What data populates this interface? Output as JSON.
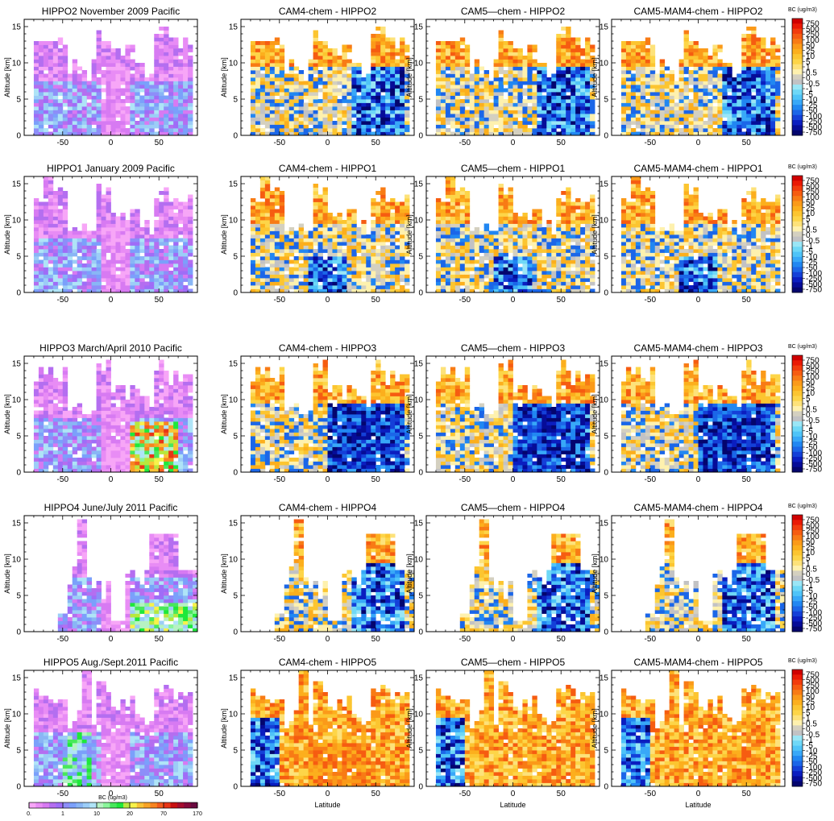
{
  "chart_data": {
    "type": "heatmap",
    "x_label": "Latitude",
    "y_label": "Altitude [km]",
    "xlim": [
      -90,
      90
    ],
    "ylim": [
      0,
      16
    ],
    "x_ticks": [
      -50,
      0,
      50
    ],
    "y_ticks": [
      0,
      5,
      10,
      15
    ],
    "rows": [
      {
        "titles": [
          "HIPPO2 November 2009 Pacific",
          "CAM4-chem - HIPPO2",
          "CAM5—chem - HIPPO2",
          "CAM5-MAM4-chem - HIPPO2"
        ]
      },
      {
        "titles": [
          "HIPPO1 January 2009 Pacific",
          "CAM4-chem - HIPPO1",
          "CAM5—chem - HIPPO1",
          "CAM5-MAM4-chem - HIPPO1"
        ]
      },
      {
        "titles": [
          "HIPPO3 March/April 2010 Pacific",
          "CAM4-chem - HIPPO3",
          "CAM5—chem - HIPPO3",
          "CAM5-MAM4-chem - HIPPO3"
        ]
      },
      {
        "titles": [
          "HIPPO4 June/July 2011 Pacific",
          "CAM4-chem - HIPPO4",
          "CAM5—chem - HIPPO4",
          "CAM5-MAM4-chem - HIPPO4"
        ]
      },
      {
        "titles": [
          "HIPPO5 Aug./Sept.2011 Pacific",
          "CAM4-chem - HIPPO5",
          "CAM5—chem - HIPPO5",
          "CAM5-MAM4-chem - HIPPO5"
        ]
      }
    ],
    "obs_colorbar": {
      "title": "BC (ug/m3)",
      "tick_labels": [
        "0.",
        "1",
        "10",
        "20",
        "70",
        "170"
      ],
      "colors": [
        "#f7a6f7",
        "#e88cf5",
        "#d77af2",
        "#b46ef0",
        "#9f6df7",
        "#8d8ef9",
        "#7ba0fb",
        "#89b6f5",
        "#9ccdf7",
        "#afe4f7",
        "#b6f2c2",
        "#8af59a",
        "#48e85c",
        "#1ee83b",
        "#b7e83e",
        "#f7f24b",
        "#f8c336",
        "#f7a327",
        "#f78420",
        "#f25a1c",
        "#e83516",
        "#c81010",
        "#a50c2d",
        "#840a3a",
        "#6a0a3f"
      ]
    },
    "diff_colorbar": {
      "title": "BC (ug/m3)",
      "tick_labels": [
        "750",
        "500",
        "250",
        "100",
        "50",
        "25",
        "10",
        "5",
        "1",
        "0.5",
        "0",
        "-0.5",
        "-1",
        "-5",
        "-10",
        "-25",
        "-50",
        "-100",
        "-250",
        "-500",
        "-750"
      ],
      "colors": [
        "#d00000",
        "#ea1a05",
        "#f23c0d",
        "#f65c11",
        "#f87b15",
        "#fb9a19",
        "#fcaf1d",
        "#fcc530",
        "#fdd548",
        "#fde27a",
        "#fef1ae",
        "#d4d0c0",
        "#c2c2c4",
        "#9ae6f6",
        "#6ed8f7",
        "#4fc4f8",
        "#38a8f8",
        "#2187f2",
        "#1b66e8",
        "#1440d8",
        "#0b1ec0",
        "#060c98",
        "#04056e"
      ]
    }
  }
}
